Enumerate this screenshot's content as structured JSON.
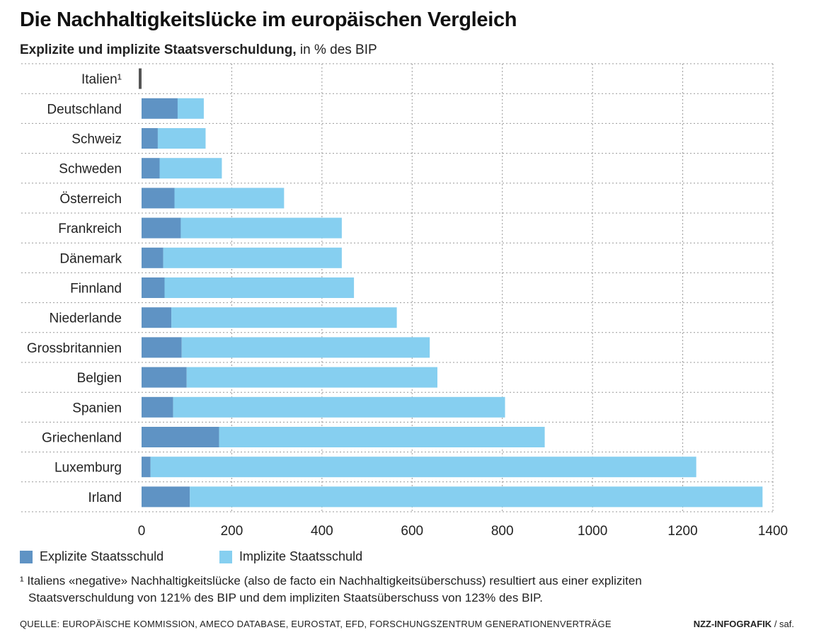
{
  "header": {
    "title": "Die Nachhaltigkeitslücke im europäischen Vergleich",
    "subtitle_main": "Explizite und implizite Staatsverschuldung,",
    "subtitle_unit": " in % des BIP"
  },
  "legend": {
    "explicit": "Explizite Staatsschuld",
    "implicit": "Implizite Staatsschuld"
  },
  "footnote": {
    "line1": "¹ Italiens «negative» Nachhaltigkeitslücke (also de facto ein Nachhaltigkeitsüberschuss) resultiert aus einer expliziten",
    "line2": "Staatsverschuldung von 121% des BIP und dem impliziten Staatsüberschuss von 123% des BIP."
  },
  "source": "QUELLE: EUROPÄISCHE KOMMISSION, AMECO DATABASE, EUROSTAT, EFD, FORSCHUNGSZENTRUM GENERATIONENVERTRÄGE",
  "credit": {
    "brand": "NZZ-INFOGRAFIK",
    "author": " / saf."
  },
  "colors": {
    "explicit": "#5f93c4",
    "implicit": "#86cff0",
    "negative": "#555555",
    "grid": "#999999"
  },
  "chart_data": {
    "type": "bar",
    "orientation": "horizontal",
    "stacked": true,
    "categories": [
      "Italien¹",
      "Deutschland",
      "Schweiz",
      "Schweden",
      "Österreich",
      "Frankreich",
      "Dänemark",
      "Finnland",
      "Niederlande",
      "Grossbritannien",
      "Belgien",
      "Spanien",
      "Griechenland",
      "Luxemburg",
      "Irland"
    ],
    "series": [
      {
        "name": "Explizite Staatsschuld",
        "values": [
          -2,
          80,
          36,
          40,
          73,
          87,
          48,
          51,
          66,
          89,
          100,
          70,
          172,
          20,
          107
        ]
      },
      {
        "name": "Implizite Staatsschuld",
        "values": [
          0,
          58,
          106,
          138,
          243,
          357,
          396,
          420,
          500,
          550,
          556,
          736,
          722,
          1210,
          1270
        ]
      }
    ],
    "xlim": [
      0,
      1400
    ],
    "xticks": [
      "0",
      "200",
      "400",
      "600",
      "800",
      "1000",
      "1200",
      "1400"
    ],
    "grid": true,
    "legend_position": "bottom-left"
  }
}
